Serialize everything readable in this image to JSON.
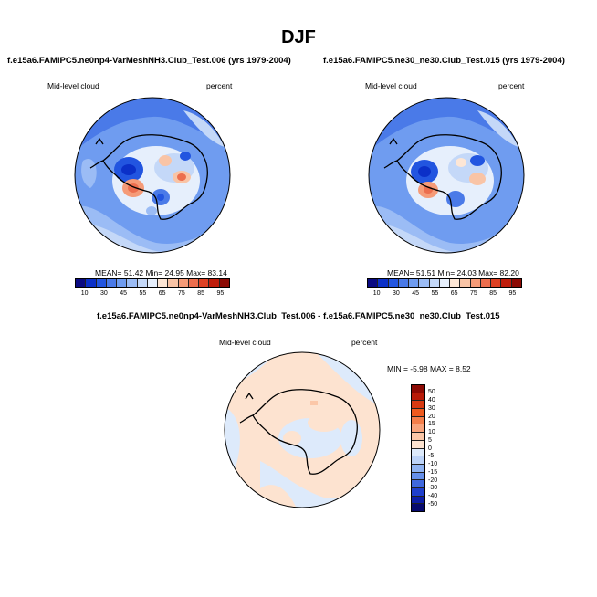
{
  "title": "DJF",
  "panel_left": {
    "title": "f.e15a6.FAMIPC5.ne0np4-VarMeshNH3.Club_Test.006 (yrs 1979-2004)",
    "variable": "Mid-level cloud",
    "units": "percent",
    "stats": "MEAN=  51.42  Min=  24.95  Max=  83.14"
  },
  "panel_right": {
    "title": "f.e15a6.FAMIPC5.ne30_ne30.Club_Test.015 (yrs 1979-2004)",
    "variable": "Mid-level cloud",
    "units": "percent",
    "stats": "MEAN=  51.51  Min=  24.03  Max=  82.20"
  },
  "panel_diff": {
    "title": "f.e15a6.FAMIPC5.ne0np4-VarMeshNH3.Club_Test.006 - f.e15a6.FAMIPC5.ne30_ne30.Club_Test.015",
    "variable": "Mid-level cloud",
    "units": "percent",
    "stats": "MIN =  -5.98 MAX =   8.52"
  },
  "colorbar_main": {
    "tick_labels": [
      "10",
      "30",
      "45",
      "55",
      "65",
      "75",
      "85",
      "95"
    ],
    "colors": [
      "#0a0a82",
      "#0b30c8",
      "#2255e0",
      "#4a7ae8",
      "#6f9cf0",
      "#9bbcf5",
      "#c4d8f8",
      "#e6effc",
      "#fde6d5",
      "#f9c4a6",
      "#f59b78",
      "#ec6e4e",
      "#dd4124",
      "#bf1d0c",
      "#8c0a04"
    ]
  },
  "colorbar_diff": {
    "tick_labels": [
      "50",
      "40",
      "30",
      "20",
      "15",
      "10",
      "5",
      "0",
      "-5",
      "-10",
      "-15",
      "-20",
      "-30",
      "-40",
      "-50"
    ],
    "colors": [
      "#8c0a04",
      "#b81a08",
      "#d83a12",
      "#ee5a1e",
      "#f47e4a",
      "#f8a47c",
      "#fbc7a8",
      "#fde3d0",
      "#ddeafb",
      "#bcd3f8",
      "#8fb3f2",
      "#6690ea",
      "#3f68de",
      "#1f3fcc",
      "#0d1ea6",
      "#070a6e"
    ]
  },
  "chart_data": [
    {
      "type": "heatmap",
      "title": "f.e15a6.FAMIPC5.ne0np4-VarMeshNH3.Club_Test.006 (yrs 1979-2004)",
      "projection": "south polar stereographic",
      "variable": "Mid-level cloud",
      "units": "percent",
      "mean": 51.42,
      "min": 24.95,
      "max": 83.14,
      "levels": [
        10,
        30,
        45,
        55,
        65,
        75,
        85,
        95
      ]
    },
    {
      "type": "heatmap",
      "title": "f.e15a6.FAMIPC5.ne30_ne30.Club_Test.015 (yrs 1979-2004)",
      "projection": "south polar stereographic",
      "variable": "Mid-level cloud",
      "units": "percent",
      "mean": 51.51,
      "min": 24.03,
      "max": 82.2,
      "levels": [
        10,
        30,
        45,
        55,
        65,
        75,
        85,
        95
      ]
    },
    {
      "type": "heatmap",
      "title": "f.e15a6.FAMIPC5.ne0np4-VarMeshNH3.Club_Test.006 - f.e15a6.FAMIPC5.ne30_ne30.Club_Test.015",
      "projection": "south polar stereographic",
      "variable": "Mid-level cloud",
      "units": "percent",
      "min": -5.98,
      "max": 8.52,
      "levels": [
        -50,
        -40,
        -30,
        -20,
        -15,
        -10,
        -5,
        0,
        5,
        10,
        15,
        20,
        30,
        40,
        50
      ]
    }
  ]
}
